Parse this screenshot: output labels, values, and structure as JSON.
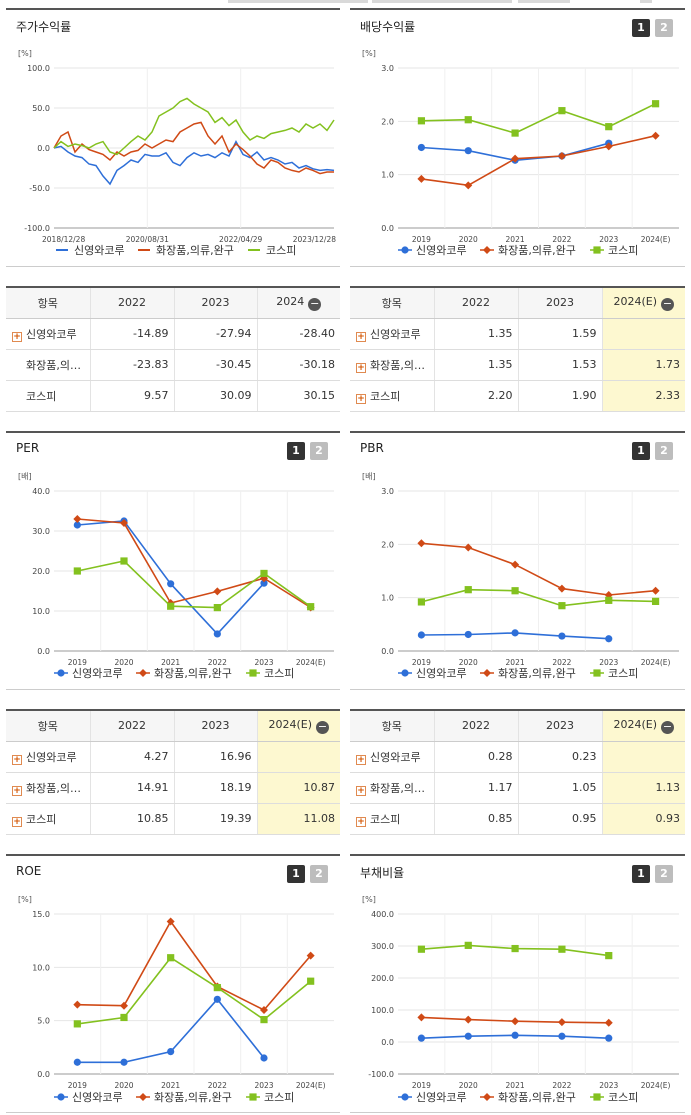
{
  "legend_names": [
    "신영와코루",
    "화장품,의류,완구",
    "코스피"
  ],
  "series_colors": [
    "#2e6fd8",
    "#d04a16",
    "#83c11f"
  ],
  "tables": {
    "returns": {
      "header": [
        "항목",
        "2022",
        "2023",
        "2024"
      ],
      "rows": [
        {
          "name": "신영와코루",
          "has_plus": true,
          "values": [
            "-14.89",
            "-27.94",
            "-28.40"
          ]
        },
        {
          "name": "화장품,의류,완구",
          "has_plus": false,
          "values": [
            "-23.83",
            "-30.45",
            "-30.18"
          ]
        },
        {
          "name": "코스피",
          "has_plus": false,
          "values": [
            "9.57",
            "30.09",
            "30.15"
          ]
        }
      ]
    },
    "dividend": {
      "header": [
        "항목",
        "2022",
        "2023",
        "2024(E)"
      ],
      "rows": [
        {
          "name": "신영와코루",
          "has_plus": true,
          "values": [
            "1.35",
            "1.59",
            ""
          ]
        },
        {
          "name": "화장품,의류,완구",
          "has_plus": true,
          "values": [
            "1.35",
            "1.53",
            "1.73"
          ]
        },
        {
          "name": "코스피",
          "has_plus": true,
          "values": [
            "2.20",
            "1.90",
            "2.33"
          ]
        }
      ]
    },
    "per": {
      "header": [
        "항목",
        "2022",
        "2023",
        "2024(E)"
      ],
      "rows": [
        {
          "name": "신영와코루",
          "has_plus": true,
          "values": [
            "4.27",
            "16.96",
            ""
          ]
        },
        {
          "name": "화장품,의류,완구",
          "has_plus": true,
          "values": [
            "14.91",
            "18.19",
            "10.87"
          ]
        },
        {
          "name": "코스피",
          "has_plus": true,
          "values": [
            "10.85",
            "19.39",
            "11.08"
          ]
        }
      ]
    },
    "pbr": {
      "header": [
        "항목",
        "2022",
        "2023",
        "2024(E)"
      ],
      "rows": [
        {
          "name": "신영와코루",
          "has_plus": true,
          "values": [
            "0.28",
            "0.23",
            ""
          ]
        },
        {
          "name": "화장품,의류,완구",
          "has_plus": true,
          "values": [
            "1.17",
            "1.05",
            "1.13"
          ]
        },
        {
          "name": "코스피",
          "has_plus": true,
          "values": [
            "0.85",
            "0.95",
            "0.93"
          ]
        }
      ]
    }
  },
  "chart_data": [
    {
      "id": "returns",
      "type": "line",
      "title": "주가수익률",
      "ylabel": "[%]",
      "ylim": [
        -100,
        100
      ],
      "yticks": [
        "100.0",
        "50.0",
        "0.0",
        "-50.0",
        "-100.0"
      ],
      "xticks": [
        "2018/12/28",
        "2020/08/31",
        "2022/04/29",
        "2023/12/28"
      ],
      "grid": true,
      "legend_position": "bottom",
      "series": [
        {
          "name": "신영와코루",
          "values": [
            0,
            2,
            -5,
            -10,
            -12,
            -20,
            -22,
            -35,
            -45,
            -28,
            -22,
            -15,
            -18,
            -8,
            -10,
            -10,
            -6,
            -18,
            -22,
            -12,
            -6,
            -10,
            -8,
            -12,
            -6,
            -10,
            8,
            -8,
            -12,
            -5,
            -15,
            -12,
            -15,
            -20,
            -18,
            -25,
            -22,
            -26,
            -28,
            -27,
            -28
          ]
        },
        {
          "name": "화장품,의류,완구",
          "values": [
            0,
            15,
            20,
            -5,
            5,
            -2,
            -5,
            -8,
            -15,
            -5,
            -10,
            -5,
            -3,
            5,
            0,
            5,
            10,
            8,
            20,
            25,
            30,
            32,
            15,
            5,
            15,
            -5,
            5,
            -2,
            -10,
            -20,
            -25,
            -15,
            -18,
            -25,
            -28,
            -30,
            -25,
            -28,
            -32,
            -30,
            -30
          ]
        },
        {
          "name": "코스피",
          "values": [
            0,
            8,
            2,
            5,
            3,
            0,
            5,
            8,
            -5,
            -8,
            0,
            8,
            15,
            10,
            20,
            40,
            45,
            50,
            58,
            62,
            55,
            50,
            45,
            32,
            38,
            28,
            35,
            20,
            10,
            15,
            12,
            18,
            20,
            22,
            25,
            20,
            30,
            25,
            30,
            22,
            35
          ]
        }
      ]
    },
    {
      "id": "dividend",
      "type": "line",
      "title": "배당수익률",
      "ylabel": "[%]",
      "ylim": [
        0,
        3
      ],
      "yticks": [
        "3.0",
        "2.0",
        "1.0",
        "0.0"
      ],
      "categories": [
        "2019",
        "2020",
        "2021",
        "2022",
        "2023",
        "2024(E)"
      ],
      "grid": true,
      "legend_position": "bottom",
      "series": [
        {
          "name": "신영와코루",
          "values": [
            1.51,
            1.45,
            1.27,
            1.35,
            1.59,
            null
          ]
        },
        {
          "name": "화장품,의류,완구",
          "values": [
            0.92,
            0.8,
            1.3,
            1.35,
            1.53,
            1.73
          ]
        },
        {
          "name": "코스피",
          "values": [
            2.01,
            2.03,
            1.78,
            2.2,
            1.9,
            2.33
          ]
        }
      ]
    },
    {
      "id": "per",
      "type": "line",
      "title": "PER",
      "ylabel": "[배]",
      "ylim": [
        0,
        40
      ],
      "yticks": [
        "40.0",
        "30.0",
        "20.0",
        "10.0",
        "0.0"
      ],
      "categories": [
        "2019",
        "2020",
        "2021",
        "2022",
        "2023",
        "2024(E)"
      ],
      "grid": true,
      "legend_position": "bottom",
      "series": [
        {
          "name": "신영와코루",
          "values": [
            31.5,
            32.5,
            16.8,
            4.27,
            16.96,
            null
          ]
        },
        {
          "name": "화장품,의류,완구",
          "values": [
            33,
            32,
            12,
            14.91,
            18.19,
            10.87
          ]
        },
        {
          "name": "코스피",
          "values": [
            20,
            22.5,
            11.2,
            10.85,
            19.39,
            11.08
          ]
        }
      ]
    },
    {
      "id": "pbr",
      "type": "line",
      "title": "PBR",
      "ylabel": "[배]",
      "ylim": [
        0,
        3
      ],
      "yticks": [
        "3.0",
        "2.0",
        "1.0",
        "0.0"
      ],
      "categories": [
        "2019",
        "2020",
        "2021",
        "2022",
        "2023",
        "2024(E)"
      ],
      "grid": true,
      "legend_position": "bottom",
      "series": [
        {
          "name": "신영와코루",
          "values": [
            0.3,
            0.31,
            0.34,
            0.28,
            0.23,
            null
          ]
        },
        {
          "name": "화장품,의류,완구",
          "values": [
            2.02,
            1.94,
            1.62,
            1.17,
            1.05,
            1.13
          ]
        },
        {
          "name": "코스피",
          "values": [
            0.92,
            1.15,
            1.13,
            0.85,
            0.95,
            0.93
          ]
        }
      ]
    },
    {
      "id": "roe",
      "type": "line",
      "title": "ROE",
      "ylabel": "[%]",
      "ylim": [
        0,
        15
      ],
      "yticks": [
        "15.0",
        "10.0",
        "5.0",
        "0.0"
      ],
      "categories": [
        "2019",
        "2020",
        "2021",
        "2022",
        "2023",
        "2024(E)"
      ],
      "grid": true,
      "legend_position": "bottom",
      "series": [
        {
          "name": "신영와코루",
          "values": [
            1.1,
            1.1,
            2.1,
            7.0,
            1.5,
            null
          ]
        },
        {
          "name": "화장품,의류,완구",
          "values": [
            6.5,
            6.4,
            14.3,
            8.2,
            6.0,
            11.1
          ]
        },
        {
          "name": "코스피",
          "values": [
            4.7,
            5.3,
            10.9,
            8.1,
            5.1,
            8.7
          ]
        }
      ]
    },
    {
      "id": "debt",
      "type": "line",
      "title": "부채비율",
      "ylabel": "[%]",
      "ylim": [
        -100,
        400
      ],
      "yticks": [
        "400.0",
        "300.0",
        "200.0",
        "100.0",
        "0.0",
        "-100.0"
      ],
      "categories": [
        "2019",
        "2020",
        "2021",
        "2022",
        "2023",
        "2024(E)"
      ],
      "grid": true,
      "legend_position": "bottom",
      "series": [
        {
          "name": "신영와코루",
          "values": [
            12,
            18,
            21,
            18,
            12,
            null
          ]
        },
        {
          "name": "화장품,의류,완구",
          "values": [
            77,
            70,
            65,
            62,
            60,
            null
          ]
        },
        {
          "name": "코스피",
          "values": [
            290,
            302,
            292,
            290,
            270,
            null
          ]
        }
      ]
    }
  ]
}
